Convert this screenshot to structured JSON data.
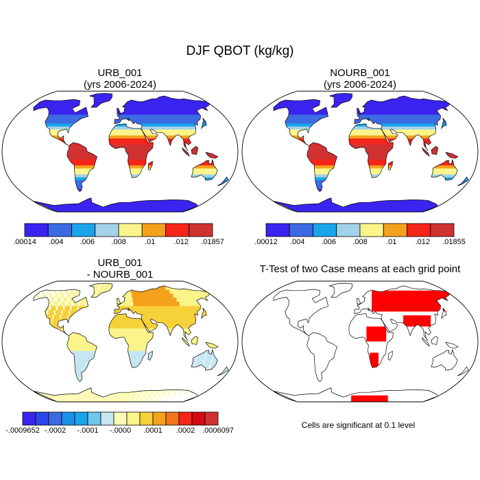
{
  "figure": {
    "title": "DJF QBOT (kg/kg)",
    "note": "Cells are significant at 0.1 level"
  },
  "chart_data": [
    {
      "type": "heatmap",
      "panel": "top-left",
      "title_line1": "URB_001",
      "title_line2": "(yrs 2006-2024)",
      "variable": "QBOT",
      "units": "kg/kg",
      "colorbar": {
        "labels": [
          ".00014",
          ".004",
          ".006",
          ".008",
          ".01",
          ".012",
          ".01857"
        ],
        "min": 0.00014,
        "max": 0.01857,
        "colors": [
          "#3b24f0",
          "#3c6ae3",
          "#1aa4eb",
          "#a3d3ea",
          "#faf48a",
          "#f4a11d",
          "#f5251a",
          "#d03232"
        ]
      }
    },
    {
      "type": "heatmap",
      "panel": "top-right",
      "title_line1": "NOURB_001",
      "title_line2": "(yrs 2006-2024)",
      "variable": "QBOT",
      "units": "kg/kg",
      "colorbar": {
        "labels": [
          ".00012",
          ".004",
          ".006",
          ".008",
          ".01",
          ".012",
          ".01855"
        ],
        "min": 0.00012,
        "max": 0.01855,
        "colors": [
          "#3b24f0",
          "#3c6ae3",
          "#1aa4eb",
          "#a3d3ea",
          "#faf48a",
          "#f4a11d",
          "#f5251a",
          "#d03232"
        ]
      }
    },
    {
      "type": "heatmap",
      "panel": "bottom-left",
      "title_line1": "URB_001",
      "title_line2": "- NOURB_001",
      "variable": "QBOT difference",
      "units": "kg/kg",
      "colorbar": {
        "labels": [
          "-.0009652",
          "-.0002",
          "-.0001",
          "-.0000",
          ".0001",
          ".0002",
          ".0006097"
        ],
        "min": -0.0009652,
        "max": 0.0006097,
        "colors": [
          "#3b24f0",
          "#2a46e8",
          "#3c6ae3",
          "#1b8fe8",
          "#1aa4eb",
          "#6fc6ee",
          "#c6e6f2",
          "#fdfab8",
          "#faf48a",
          "#f7d13a",
          "#f4a11d",
          "#f3731a",
          "#f5251a",
          "#d60a12",
          "#d03232"
        ]
      }
    },
    {
      "type": "heatmap",
      "panel": "bottom-right",
      "title": "T-Test of two Case means at each grid point",
      "significance_level": 0.1,
      "significant_color": "#ff0000"
    }
  ]
}
